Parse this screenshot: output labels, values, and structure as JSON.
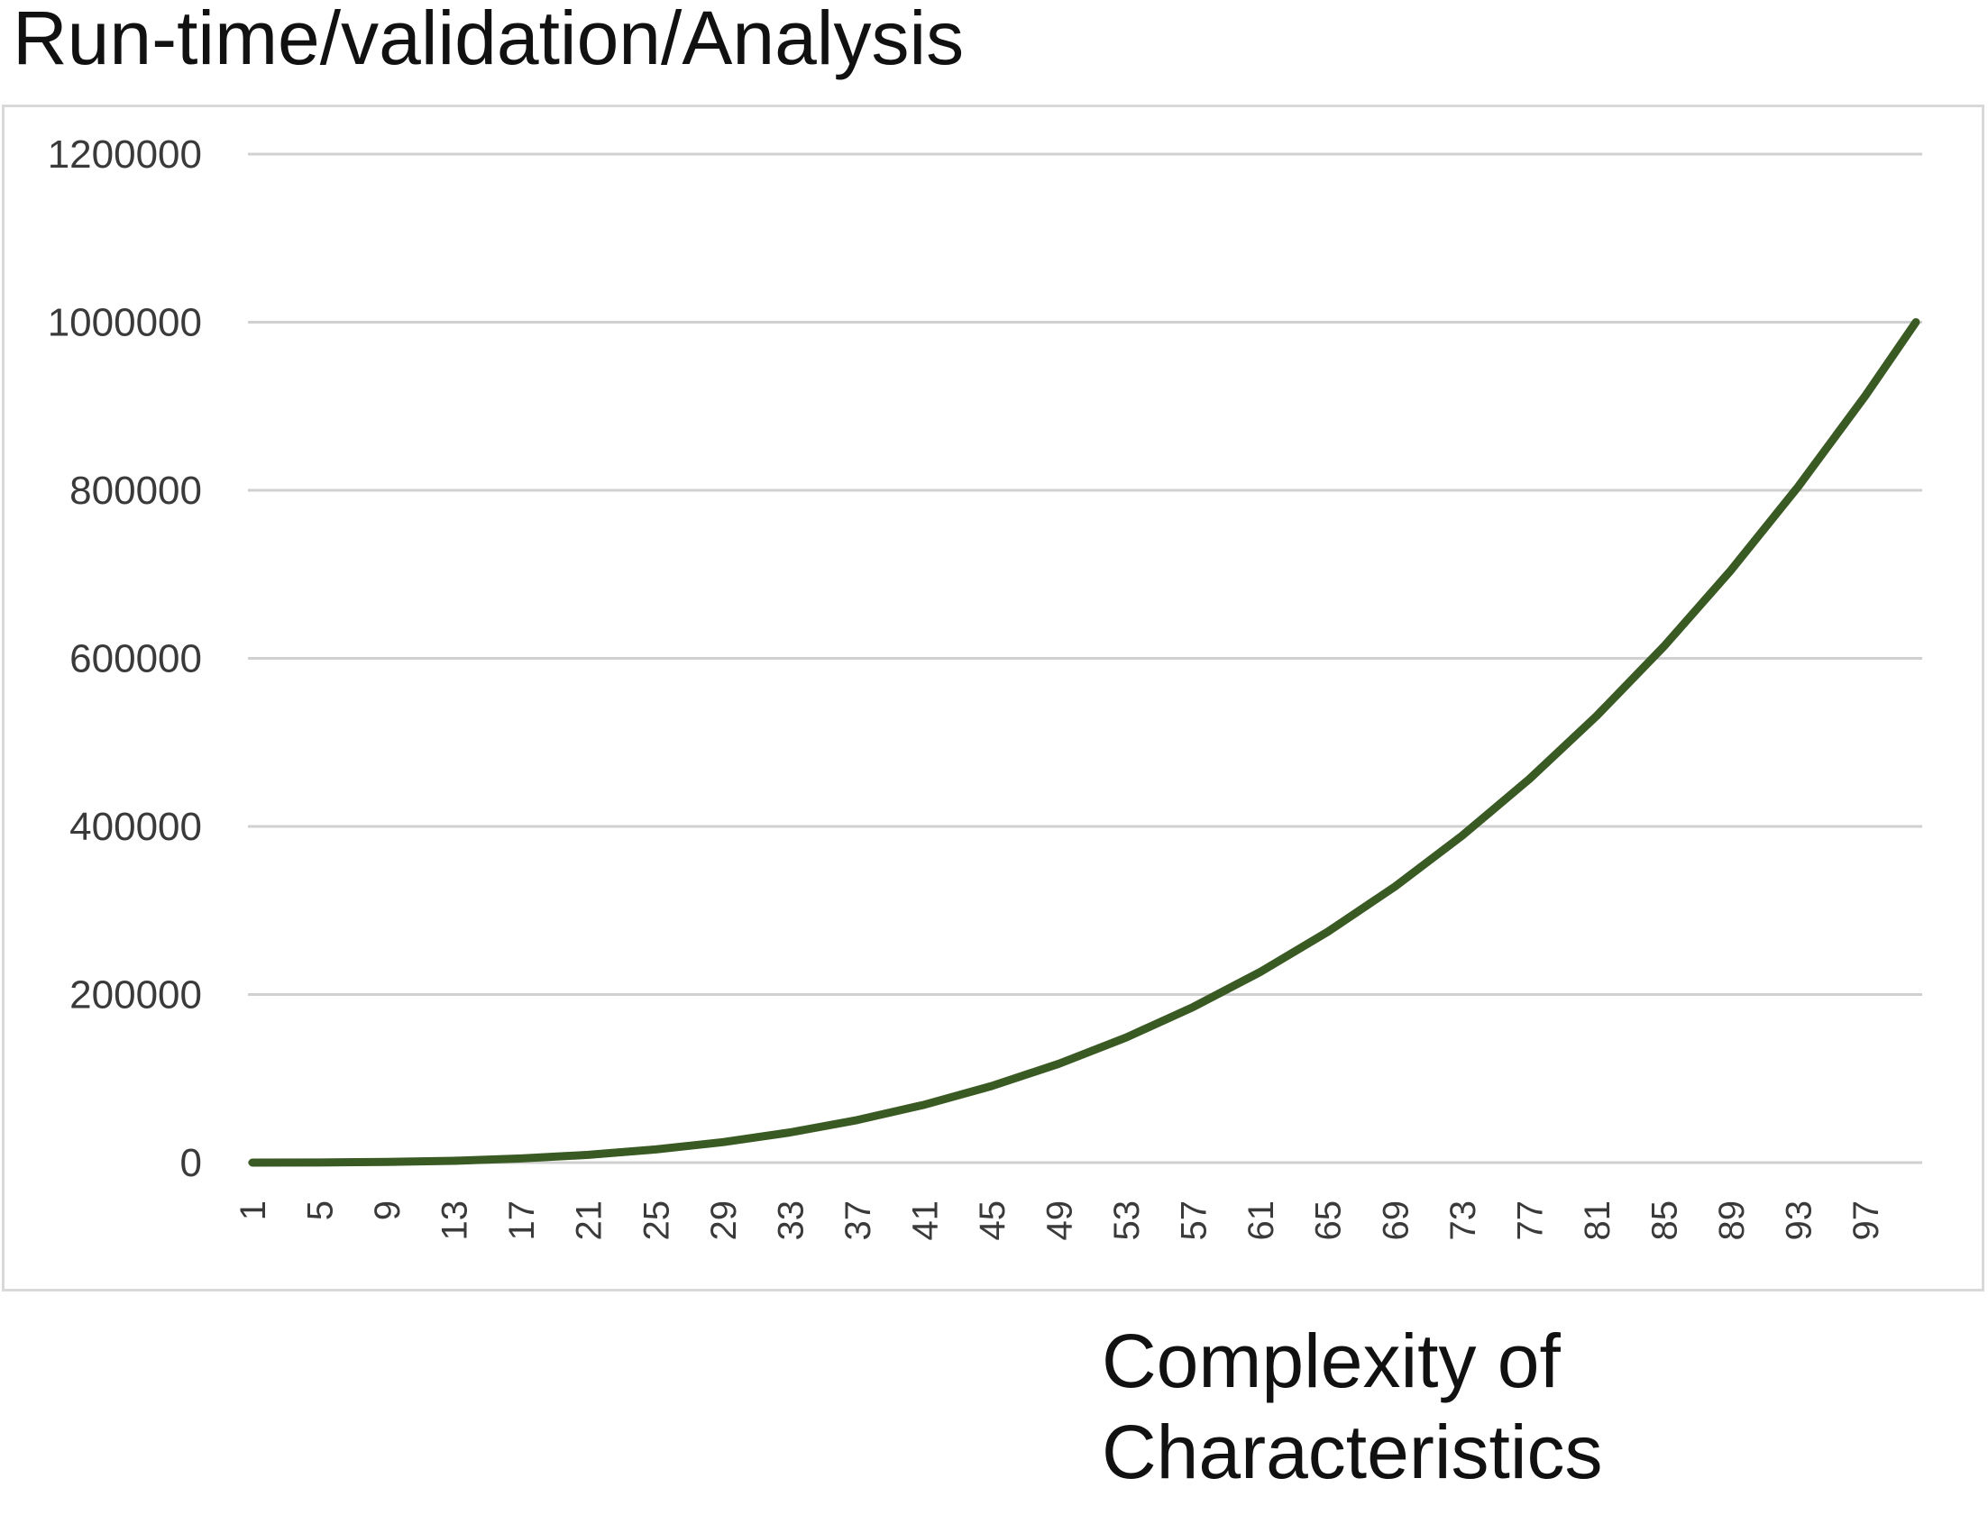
{
  "chart_data": {
    "type": "line",
    "title": "Run-time/validation/Analysis",
    "xlabel_lines": [
      "Complexity of",
      "Characteristics"
    ],
    "ylabel": "",
    "x_tick_labels": [
      "1",
      "5",
      "9",
      "13",
      "17",
      "21",
      "25",
      "29",
      "33",
      "37",
      "41",
      "45",
      "49",
      "53",
      "57",
      "61",
      "65",
      "69",
      "73",
      "77",
      "81",
      "85",
      "89",
      "93",
      "97"
    ],
    "x": [
      1,
      5,
      9,
      13,
      17,
      21,
      25,
      29,
      33,
      37,
      41,
      45,
      49,
      53,
      57,
      61,
      65,
      69,
      73,
      77,
      81,
      85,
      89,
      93,
      97,
      100
    ],
    "y_ticks": [
      0,
      200000,
      400000,
      600000,
      800000,
      1000000,
      1200000
    ],
    "ylim": [
      0,
      1200000
    ],
    "xlim": [
      1,
      100
    ],
    "grid": true,
    "series": [
      {
        "color": "#3a5a23",
        "values": [
          1,
          125,
          729,
          2197,
          4913,
          9261,
          15625,
          24389,
          35937,
          50653,
          68921,
          91125,
          117649,
          148877,
          185193,
          226981,
          274625,
          328509,
          389017,
          456533,
          531441,
          614125,
          704969,
          804357,
          912673,
          1000000
        ]
      }
    ]
  }
}
